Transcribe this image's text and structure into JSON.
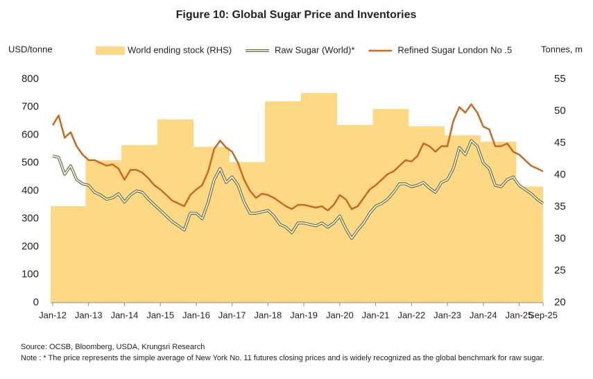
{
  "chart_data": {
    "type": "combo",
    "title": "Figure 10: Global Sugar Price and Inventories",
    "y_label": "USD/tonne",
    "y2_label": "Tonnes, m",
    "source": "Source: OCSB, Bloomberg, USDA, Krungsri Research",
    "note": "Note : * The price represents the simple average of New York No. 11 futures closing prices and is widely recognized as the global benchmark for raw sugar.",
    "categories": [
      "Jan-12",
      null,
      null,
      null,
      null,
      null,
      "Jan-13",
      null,
      null,
      null,
      null,
      null,
      "Jan-14",
      null,
      null,
      null,
      null,
      null,
      "Jan-15",
      null,
      null,
      null,
      null,
      null,
      "Jan-16",
      null,
      null,
      null,
      null,
      null,
      "Jan-17",
      null,
      null,
      null,
      null,
      null,
      "Jan-18",
      null,
      null,
      null,
      null,
      null,
      "Jan-19",
      null,
      null,
      null,
      null,
      null,
      "Jan-20",
      null,
      null,
      null,
      null,
      null,
      "Jan-21",
      null,
      null,
      null,
      null,
      null,
      "Jan-22",
      null,
      null,
      null,
      null,
      null,
      "Jan-23",
      null,
      null,
      null,
      null,
      null,
      "Jan-24",
      null,
      null,
      null,
      null,
      null,
      "Jan-25",
      null,
      null,
      null,
      "Sep-25"
    ],
    "ylim": [
      0,
      800
    ],
    "yticks": [
      0,
      100,
      200,
      300,
      400,
      500,
      600,
      700,
      800
    ],
    "y2lim": [
      20,
      55
    ],
    "y2ticks": [
      20,
      25,
      30,
      35,
      40,
      45,
      50,
      55
    ],
    "series": [
      {
        "name": "World ending stock (RHS)",
        "kind": "area",
        "axis": "y2",
        "color": "#fdd985",
        "values": [
          35.1,
          35.1,
          35.1,
          35.1,
          35.1,
          35.1,
          42.3,
          42.3,
          42.3,
          42.3,
          42.3,
          42.3,
          44.7,
          44.7,
          44.7,
          44.7,
          44.7,
          44.7,
          48.7,
          48.7,
          48.7,
          48.7,
          48.7,
          48.7,
          44.4,
          44.4,
          44.4,
          44.4,
          44.4,
          44.4,
          42.0,
          42.0,
          42.0,
          42.0,
          42.0,
          42.0,
          51.5,
          51.5,
          51.5,
          51.5,
          51.5,
          51.5,
          52.8,
          52.8,
          52.8,
          52.8,
          52.8,
          52.8,
          47.8,
          47.8,
          47.8,
          47.8,
          47.8,
          47.8,
          50.3,
          50.3,
          50.3,
          50.3,
          50.3,
          50.3,
          47.6,
          47.6,
          47.6,
          47.6,
          47.6,
          47.6,
          46.2,
          46.2,
          46.2,
          46.2,
          46.2,
          46.2,
          45.2,
          45.2,
          45.2,
          45.2,
          45.2,
          45.2,
          38.2,
          38.2,
          38.2,
          38.2,
          38.2
        ]
      },
      {
        "name": "Raw Sugar (World)*",
        "kind": "double-line",
        "color": "#6b6b3a",
        "values": [
          525,
          520,
          460,
          490,
          440,
          425,
          420,
          395,
          385,
          370,
          375,
          390,
          360,
          385,
          400,
          395,
          370,
          350,
          330,
          310,
          290,
          275,
          260,
          320,
          320,
          300,
          360,
          440,
          480,
          430,
          450,
          420,
          360,
          320,
          320,
          325,
          330,
          310,
          280,
          270,
          250,
          285,
          285,
          280,
          275,
          285,
          270,
          285,
          310,
          265,
          230,
          260,
          285,
          320,
          345,
          355,
          370,
          395,
          425,
          425,
          415,
          420,
          430,
          410,
          395,
          430,
          440,
          480,
          555,
          530,
          580,
          560,
          500,
          480,
          420,
          415,
          440,
          450,
          420,
          405,
          390,
          370,
          355
        ]
      },
      {
        "name": "Refined Sugar London No .5",
        "kind": "line",
        "color": "#c9681f",
        "values": [
          635,
          670,
          590,
          610,
          560,
          530,
          510,
          510,
          500,
          490,
          495,
          480,
          440,
          475,
          475,
          465,
          445,
          420,
          405,
          385,
          365,
          355,
          345,
          385,
          405,
          420,
          470,
          550,
          580,
          555,
          540,
          500,
          440,
          400,
          375,
          390,
          385,
          375,
          360,
          345,
          335,
          350,
          350,
          345,
          340,
          345,
          330,
          350,
          385,
          370,
          335,
          345,
          375,
          405,
          420,
          440,
          460,
          470,
          490,
          510,
          505,
          525,
          570,
          560,
          540,
          560,
          560,
          650,
          700,
          680,
          710,
          680,
          630,
          620,
          560,
          560,
          570,
          540,
          530,
          510,
          490,
          480,
          470
        ]
      }
    ]
  }
}
